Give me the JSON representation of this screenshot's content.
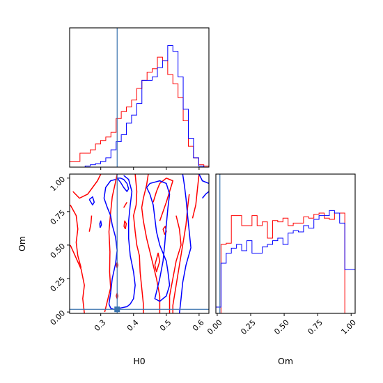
{
  "chart_data": {
    "type": "corner",
    "parameters": [
      "H0",
      "Om"
    ],
    "truths": {
      "H0": 0.35,
      "Om": 0.02
    },
    "truth_color": "#3b75af",
    "colors": {
      "red_series": "#ff0000",
      "blue_series": "#0000ff"
    },
    "axes": {
      "H0": {
        "label": "H0",
        "lim": [
          0.205,
          0.63
        ],
        "ticks": [
          "0.3",
          "0.4",
          "0.5",
          "0.6"
        ]
      },
      "Om": {
        "label": "Om",
        "lim": [
          -0.01,
          1.03
        ],
        "ticks": [
          "0.00",
          "0.25",
          "0.50",
          "0.75",
          "1.00"
        ]
      }
    },
    "hist_H0": {
      "bin_edges": [
        0.205,
        0.2208,
        0.2365,
        0.2523,
        0.268,
        0.2838,
        0.2995,
        0.3153,
        0.331,
        0.3468,
        0.3625,
        0.3783,
        0.394,
        0.4098,
        0.4255,
        0.4413,
        0.457,
        0.4728,
        0.4885,
        0.5043,
        0.52,
        0.5358,
        0.5515,
        0.5673,
        0.583,
        0.5988,
        0.6145,
        0.63
      ],
      "red": [
        5,
        5,
        12,
        12,
        15,
        20,
        23,
        26,
        30,
        42,
        48,
        52,
        58,
        68,
        75,
        82,
        85,
        95,
        92,
        80,
        72,
        60,
        40,
        18,
        8,
        2,
        1
      ],
      "blue": [
        0,
        0,
        0,
        1,
        2,
        3,
        5,
        8,
        15,
        22,
        28,
        38,
        45,
        55,
        75,
        75,
        78,
        86,
        92,
        105,
        100,
        78,
        50,
        25,
        8,
        1,
        0
      ]
    },
    "hist_Om": {
      "bin_edges": [
        -0.01,
        0.0285,
        0.067,
        0.1055,
        0.144,
        0.1826,
        0.2211,
        0.2596,
        0.2981,
        0.3366,
        0.3751,
        0.4136,
        0.4521,
        0.4907,
        0.5292,
        0.5677,
        0.6062,
        0.6447,
        0.6832,
        0.7217,
        0.7602,
        0.7987,
        0.8373,
        0.8758,
        0.9143,
        0.9528,
        0.9913,
        1.03
      ],
      "red": [
        0,
        55,
        56,
        78,
        78,
        70,
        70,
        78,
        70,
        73,
        60,
        74,
        73,
        76,
        70,
        72,
        72,
        77,
        76,
        79,
        80,
        76,
        75,
        80,
        80,
        0,
        0
      ],
      "blue": [
        5,
        40,
        48,
        52,
        55,
        50,
        58,
        48,
        48,
        53,
        55,
        58,
        60,
        55,
        64,
        66,
        65,
        70,
        68,
        75,
        78,
        78,
        82,
        80,
        72,
        35,
        35
      ]
    },
    "contours_red": [
      [
        [
          0.215,
          0.9
        ],
        [
          0.235,
          0.85
        ],
        [
          0.26,
          0.88
        ],
        [
          0.29,
          0.98
        ],
        [
          0.3,
          1.03
        ]
      ],
      [
        [
          0.207,
          0.5
        ],
        [
          0.22,
          0.43
        ],
        [
          0.24,
          0.32
        ],
        [
          0.25,
          0.2
        ],
        [
          0.245,
          0.1
        ],
        [
          0.25,
          -0.01
        ]
      ],
      [
        [
          0.207,
          0.8
        ],
        [
          0.225,
          0.72
        ],
        [
          0.23,
          0.62
        ],
        [
          0.225,
          0.52
        ],
        [
          0.23,
          0.42
        ],
        [
          0.24,
          0.33
        ]
      ],
      [
        [
          0.265,
          0.6
        ],
        [
          0.27,
          0.66
        ],
        [
          0.272,
          0.72
        ]
      ],
      [
        [
          0.312,
          0.0
        ],
        [
          0.32,
          0.08
        ],
        [
          0.33,
          0.18
        ],
        [
          0.327,
          0.3
        ],
        [
          0.328,
          0.45
        ],
        [
          0.325,
          0.6
        ],
        [
          0.33,
          0.74
        ],
        [
          0.335,
          0.86
        ],
        [
          0.345,
          0.97
        ],
        [
          0.35,
          1.03
        ]
      ],
      [
        [
          0.37,
          0.78
        ],
        [
          0.38,
          0.82
        ]
      ],
      [
        [
          0.347,
          0.35
        ],
        [
          0.35,
          0.33
        ],
        [
          0.352,
          0.35
        ],
        [
          0.35,
          0.37
        ],
        [
          0.347,
          0.35
        ]
      ],
      [
        [
          0.347,
          0.12
        ],
        [
          0.35,
          0.1
        ],
        [
          0.352,
          0.12
        ],
        [
          0.35,
          0.14
        ],
        [
          0.347,
          0.12
        ]
      ],
      [
        [
          0.375,
          0.62
        ],
        [
          0.378,
          0.66
        ],
        [
          0.373,
          0.68
        ],
        [
          0.371,
          0.64
        ],
        [
          0.375,
          0.62
        ]
      ],
      [
        [
          0.405,
          1.03
        ],
        [
          0.41,
          0.9
        ],
        [
          0.408,
          0.8
        ],
        [
          0.4,
          0.72
        ],
        [
          0.405,
          0.6
        ],
        [
          0.41,
          0.5
        ],
        [
          0.418,
          0.42
        ],
        [
          0.42,
          0.3
        ],
        [
          0.425,
          0.18
        ],
        [
          0.43,
          0.06
        ],
        [
          0.43,
          -0.01
        ]
      ],
      [
        [
          0.445,
          1.03
        ],
        [
          0.44,
          0.95
        ],
        [
          0.43,
          0.85
        ],
        [
          0.425,
          0.78
        ],
        [
          0.43,
          0.68
        ],
        [
          0.44,
          0.55
        ],
        [
          0.45,
          0.45
        ],
        [
          0.46,
          0.35
        ],
        [
          0.47,
          0.25
        ],
        [
          0.48,
          0.12
        ],
        [
          0.48,
          -0.01
        ]
      ],
      [
        [
          0.46,
          0.82
        ],
        [
          0.47,
          0.9
        ],
        [
          0.48,
          0.96
        ],
        [
          0.5,
          1.0
        ],
        [
          0.52,
          0.98
        ],
        [
          0.51,
          0.9
        ],
        [
          0.5,
          0.82
        ],
        [
          0.49,
          0.75
        ],
        [
          0.48,
          0.68
        ]
      ],
      [
        [
          0.49,
          0.62
        ],
        [
          0.495,
          0.58
        ],
        [
          0.5,
          0.6
        ],
        [
          0.497,
          0.64
        ],
        [
          0.49,
          0.62
        ]
      ],
      [
        [
          0.465,
          0.35
        ],
        [
          0.47,
          0.3
        ],
        [
          0.48,
          0.38
        ],
        [
          0.475,
          0.44
        ],
        [
          0.465,
          0.35
        ]
      ],
      [
        [
          0.53,
          0.72
        ],
        [
          0.54,
          0.62
        ],
        [
          0.545,
          0.5
        ],
        [
          0.53,
          0.38
        ],
        [
          0.52,
          0.25
        ],
        [
          0.51,
          0.12
        ],
        [
          0.51,
          -0.01
        ]
      ],
      [
        [
          0.57,
          0.88
        ],
        [
          0.565,
          0.78
        ],
        [
          0.56,
          0.65
        ],
        [
          0.55,
          0.5
        ],
        [
          0.54,
          0.35
        ],
        [
          0.53,
          0.2
        ],
        [
          0.52,
          0.05
        ],
        [
          0.52,
          -0.01
        ]
      ],
      [
        [
          0.6,
          1.03
        ],
        [
          0.595,
          0.92
        ],
        [
          0.59,
          0.8
        ],
        [
          0.58,
          0.7
        ]
      ]
    ],
    "contours_blue": [
      [
        [
          0.265,
          0.84
        ],
        [
          0.275,
          0.8
        ],
        [
          0.28,
          0.82
        ],
        [
          0.275,
          0.86
        ],
        [
          0.265,
          0.84
        ]
      ],
      [
        [
          0.298,
          0.63
        ],
        [
          0.302,
          0.65
        ],
        [
          0.3,
          0.68
        ],
        [
          0.297,
          0.66
        ],
        [
          0.298,
          0.63
        ]
      ],
      [
        [
          0.35,
          1.0
        ],
        [
          0.36,
          0.97
        ],
        [
          0.37,
          0.93
        ],
        [
          0.38,
          0.9
        ],
        [
          0.385,
          0.92
        ],
        [
          0.38,
          0.96
        ],
        [
          0.37,
          0.99
        ],
        [
          0.36,
          1.0
        ],
        [
          0.35,
          1.0
        ]
      ],
      [
        [
          0.345,
          0.99
        ],
        [
          0.33,
          0.98
        ],
        [
          0.315,
          0.93
        ],
        [
          0.31,
          0.85
        ],
        [
          0.32,
          0.78
        ],
        [
          0.33,
          0.72
        ],
        [
          0.335,
          0.65
        ],
        [
          0.345,
          0.56
        ],
        [
          0.35,
          0.46
        ],
        [
          0.345,
          0.36
        ],
        [
          0.335,
          0.25
        ],
        [
          0.33,
          0.14
        ],
        [
          0.325,
          0.06
        ],
        [
          0.33,
          0.03
        ],
        [
          0.34,
          0.02
        ],
        [
          0.35,
          0.02
        ],
        [
          0.36,
          0.03
        ],
        [
          0.38,
          0.04
        ],
        [
          0.39,
          0.06
        ],
        [
          0.4,
          0.1
        ],
        [
          0.405,
          0.2
        ],
        [
          0.4,
          0.3
        ],
        [
          0.39,
          0.42
        ],
        [
          0.385,
          0.55
        ],
        [
          0.385,
          0.68
        ],
        [
          0.39,
          0.8
        ],
        [
          0.395,
          0.9
        ],
        [
          0.385,
          0.99
        ],
        [
          0.37,
          1.02
        ]
      ],
      [
        [
          0.44,
          0.93
        ],
        [
          0.45,
          0.96
        ],
        [
          0.48,
          0.98
        ],
        [
          0.5,
          0.96
        ],
        [
          0.51,
          0.88
        ],
        [
          0.505,
          0.78
        ],
        [
          0.5,
          0.65
        ],
        [
          0.495,
          0.5
        ],
        [
          0.49,
          0.38
        ],
        [
          0.48,
          0.25
        ],
        [
          0.47,
          0.15
        ],
        [
          0.465,
          0.1
        ],
        [
          0.48,
          0.08
        ],
        [
          0.5,
          0.12
        ],
        [
          0.51,
          0.2
        ],
        [
          0.505,
          0.3
        ],
        [
          0.5,
          0.38
        ],
        [
          0.49,
          0.44
        ],
        [
          0.48,
          0.5
        ],
        [
          0.47,
          0.6
        ],
        [
          0.465,
          0.7
        ],
        [
          0.46,
          0.8
        ],
        [
          0.45,
          0.88
        ],
        [
          0.44,
          0.93
        ]
      ],
      [
        [
          0.55,
          1.03
        ],
        [
          0.555,
          0.95
        ],
        [
          0.56,
          0.85
        ],
        [
          0.565,
          0.72
        ],
        [
          0.57,
          0.6
        ],
        [
          0.575,
          0.48
        ],
        [
          0.56,
          0.35
        ],
        [
          0.55,
          0.22
        ],
        [
          0.545,
          0.1
        ],
        [
          0.54,
          -0.01
        ]
      ],
      [
        [
          0.6,
          1.03
        ],
        [
          0.61,
          0.98
        ],
        [
          0.63,
          0.96
        ]
      ],
      [
        [
          0.63,
          0.9
        ],
        [
          0.62,
          0.88
        ],
        [
          0.61,
          0.85
        ]
      ]
    ]
  }
}
